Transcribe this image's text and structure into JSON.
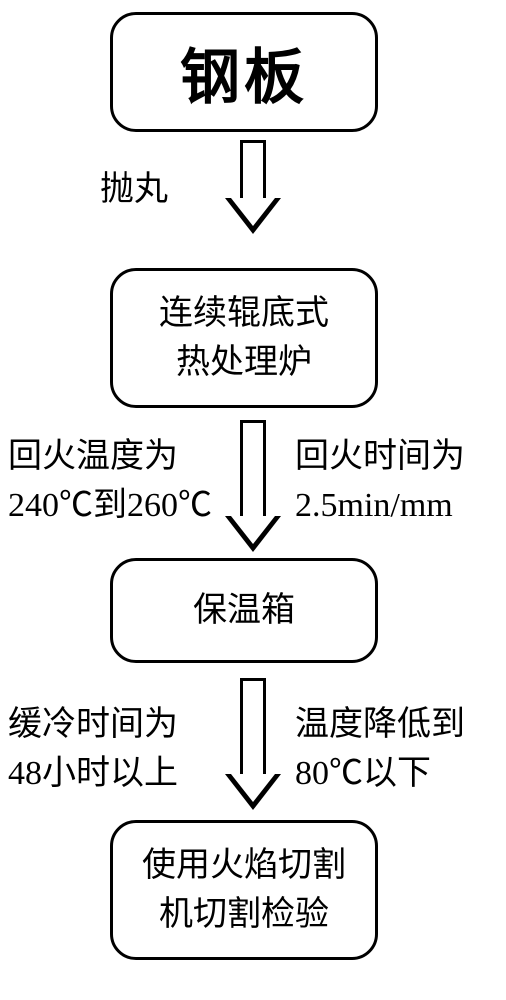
{
  "nodes": {
    "n1": "钢板",
    "n2": "连续辊底式\n热处理炉",
    "n3": "保温箱",
    "n4": "使用火焰切割\n机切割检验"
  },
  "labels": {
    "paowan": "抛丸",
    "temper_temp": "回火温度为\n240℃到260℃",
    "temper_time": "回火时间为\n2.5min/mm",
    "slow_cool_time": "缓冷时间为\n48小时以上",
    "slow_cool_temp": "温度降低到\n80℃以下"
  },
  "style": {
    "type": "flowchart",
    "background_color": "#ffffff",
    "stroke_color": "#000000",
    "stroke_width": 3,
    "node_border_radius": 26,
    "title_fontsize": 60,
    "body_fontsize": 34,
    "font_family": "SimSun"
  }
}
